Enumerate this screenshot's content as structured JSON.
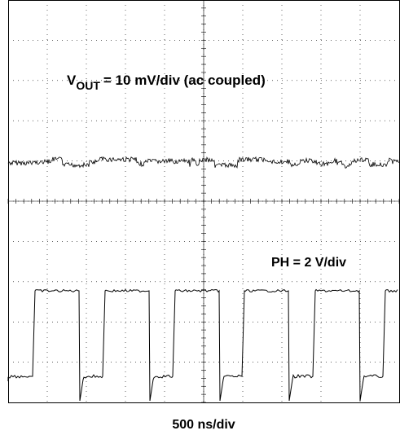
{
  "annotations": {
    "vout_symbol": "V",
    "vout_subscript": "OUT",
    "vout_scale": "= 10 mV/div (ac coupled)",
    "ph_scale": "PH = 2 V/div"
  },
  "x_axis_label": "500 ns/div"
}
